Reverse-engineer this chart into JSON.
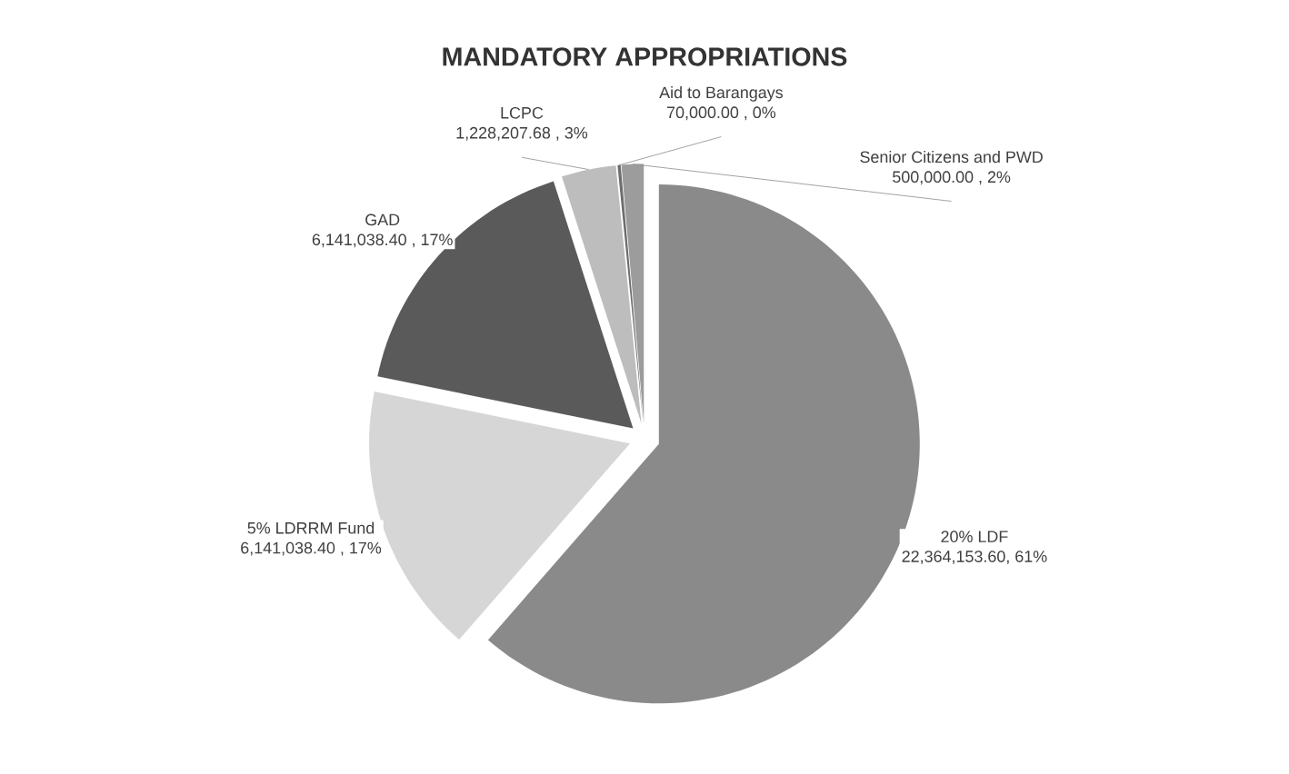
{
  "chart_data": {
    "type": "pie",
    "title": "MANDATORY APPROPRIATIONS",
    "categories": [
      "20% LDF",
      "5% LDRRM Fund",
      "GAD",
      "LCPC",
      "Aid to Barangays",
      "Senior Citizens and PWD"
    ],
    "values": [
      22364153.6,
      6141038.4,
      6141038.4,
      1228207.68,
      70000.0,
      500000.0
    ],
    "value_labels": [
      "22,364,153.60, 61%",
      "6,141,038.40 , 17%",
      "6,141,038.40 , 17%",
      "1,228,207.68 , 3%",
      "70,000.00 , 0%",
      "500,000.00 , 2%"
    ],
    "colors": [
      "#8a8a8a",
      "#d6d6d6",
      "#5a5a5a",
      "#bdbdbd",
      "#6e6e6e",
      "#9c9c9c"
    ]
  }
}
